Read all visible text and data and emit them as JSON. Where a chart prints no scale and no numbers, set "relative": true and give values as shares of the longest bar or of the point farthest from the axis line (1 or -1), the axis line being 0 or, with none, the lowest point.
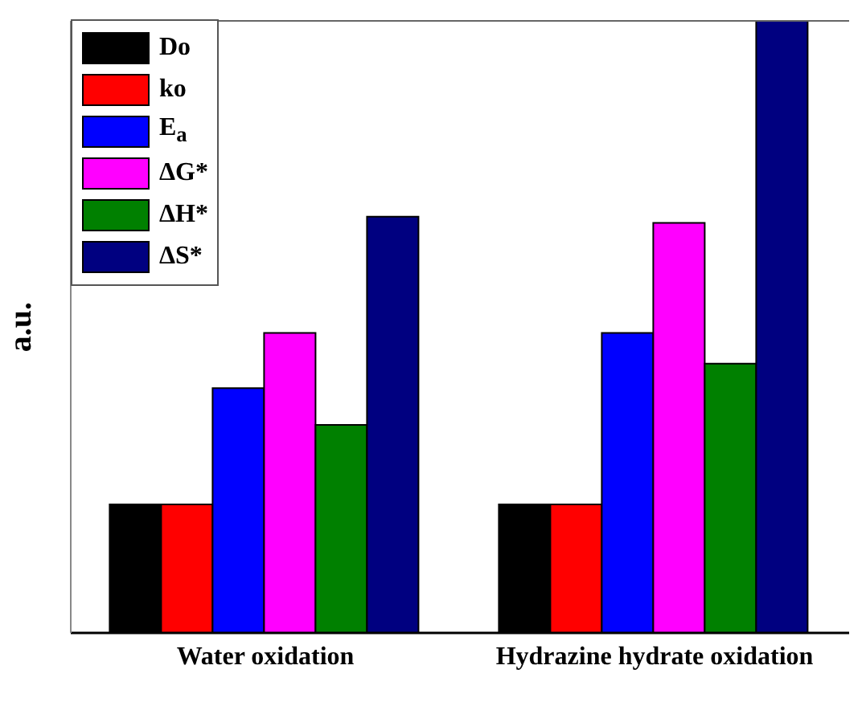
{
  "chart_data": {
    "type": "bar",
    "relative": true,
    "ylabel": "a.u.",
    "categories": [
      "Water oxidation",
      "Hydrazine hydrate oxidation"
    ],
    "legend": "top left",
    "series": [
      {
        "name": "Do",
        "color": "#000000",
        "values": [
          0.21,
          0.21
        ]
      },
      {
        "name": "ko",
        "color": "#ff0000",
        "values": [
          0.21,
          0.21
        ]
      },
      {
        "name": "E$_{a}$",
        "color": "#0000ff",
        "values": [
          0.4,
          0.49
        ]
      },
      {
        "name": "ΔG*",
        "color": "#ff00ff",
        "values": [
          0.49,
          0.67
        ]
      },
      {
        "name": "ΔH*",
        "color": "#008000",
        "values": [
          0.34,
          0.44
        ]
      },
      {
        "name": "ΔS*",
        "color": "#000080",
        "values": [
          0.68,
          1
        ]
      }
    ]
  }
}
